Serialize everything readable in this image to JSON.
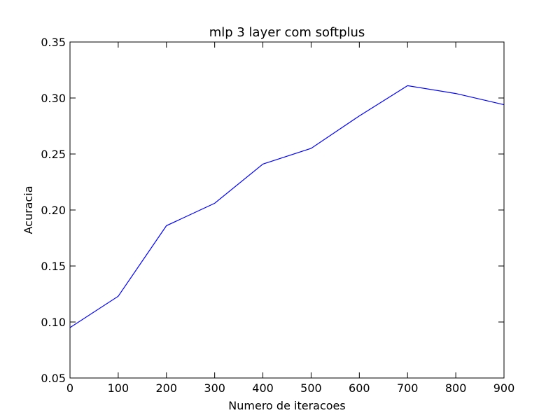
{
  "chart_data": {
    "type": "line",
    "title": "mlp 3 layer com softplus",
    "xlabel": "Numero de iteracoes",
    "ylabel": "Acuracia",
    "xlim": [
      0,
      900
    ],
    "ylim": [
      0.05,
      0.35
    ],
    "xticks": [
      0,
      100,
      200,
      300,
      400,
      500,
      600,
      700,
      800,
      900
    ],
    "xtick_labels": [
      "0",
      "100",
      "200",
      "300",
      "400",
      "500",
      "600",
      "700",
      "800",
      "900"
    ],
    "yticks": [
      0.05,
      0.1,
      0.15,
      0.2,
      0.25,
      0.3,
      0.35
    ],
    "ytick_labels": [
      "0.05",
      "0.10",
      "0.15",
      "0.20",
      "0.25",
      "0.30",
      "0.35"
    ],
    "grid": false,
    "series": [
      {
        "color": "#0000ff",
        "x": [
          0,
          100,
          200,
          300,
          400,
          500,
          600,
          700,
          800,
          900
        ],
        "y": [
          0.095,
          0.123,
          0.186,
          0.206,
          0.241,
          0.255,
          0.284,
          0.311,
          0.304,
          0.294
        ]
      }
    ]
  }
}
